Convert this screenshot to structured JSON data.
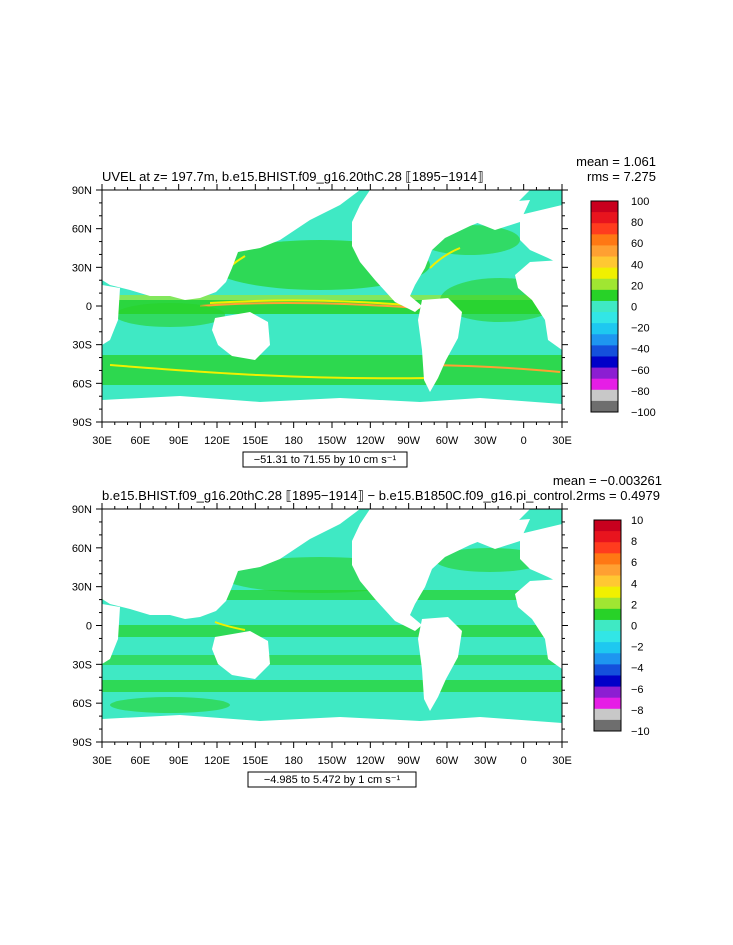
{
  "colors": {
    "ocean_fill": "#3fe9c4",
    "land_fill": "#ffffff",
    "axis_color": "#000000"
  },
  "chart_data": [
    {
      "type": "heatmap",
      "title": "UVEL at z= 197.7m, b.e15.BHIST.f09_g16.20thC.28 ⟦1895−1914⟧",
      "stats": {
        "mean": "mean = 1.061",
        "rms": "rms = 7.275"
      },
      "x_ticks": [
        "30E",
        "60E",
        "90E",
        "120E",
        "150E",
        "180",
        "150W",
        "120W",
        "90W",
        "60W",
        "30W",
        "0",
        "30E"
      ],
      "y_ticks": [
        "90N",
        "60N",
        "30N",
        "0",
        "30S",
        "60S",
        "90S"
      ],
      "xlim": [
        30,
        390
      ],
      "ylim": [
        -90,
        90
      ],
      "range_label": "−51.31 to 71.55 by 10 cm s⁻¹",
      "colorbar": {
        "labels": [
          "100",
          "80",
          "60",
          "40",
          "20",
          "0",
          "−20",
          "−40",
          "−60",
          "−80",
          "−100"
        ],
        "colors": [
          "#c8001e",
          "#e8141e",
          "#ff3c1e",
          "#ff7814",
          "#ffa032",
          "#ffc832",
          "#f0f000",
          "#a0e632",
          "#28d228",
          "#3fe9c4",
          "#32e6e6",
          "#1ec8f0",
          "#1e96f0",
          "#1450dc",
          "#0000c8",
          "#8c1ed2",
          "#e61ee6",
          "#c8c8c8",
          "#6e6e6e"
        ]
      }
    },
    {
      "type": "heatmap",
      "title": "b.e15.BHIST.f09_g16.20thC.28 ⟦1895−1914⟧ − b.e15.B1850C.f09_g16.pi_control.2",
      "stats": {
        "mean": "mean = −0.003261",
        "rms": "rms = 0.4979"
      },
      "x_ticks": [
        "30E",
        "60E",
        "90E",
        "120E",
        "150E",
        "180",
        "150W",
        "120W",
        "90W",
        "60W",
        "30W",
        "0",
        "30E"
      ],
      "y_ticks": [
        "90N",
        "60N",
        "30N",
        "0",
        "30S",
        "60S",
        "90S"
      ],
      "xlim": [
        30,
        390
      ],
      "ylim": [
        -90,
        90
      ],
      "range_label": "−4.985 to 5.472 by 1 cm s⁻¹",
      "colorbar": {
        "labels": [
          "10",
          "8",
          "6",
          "4",
          "2",
          "0",
          "−2",
          "−4",
          "−6",
          "−8",
          "−10"
        ],
        "colors": [
          "#c8001e",
          "#e8141e",
          "#ff3c1e",
          "#ff7814",
          "#ffa032",
          "#ffc832",
          "#f0f000",
          "#a0e632",
          "#28d228",
          "#3fe9c4",
          "#32e6e6",
          "#1ec8f0",
          "#1e96f0",
          "#1450dc",
          "#0000c8",
          "#8c1ed2",
          "#e61ee6",
          "#c8c8c8",
          "#6e6e6e"
        ]
      }
    }
  ]
}
